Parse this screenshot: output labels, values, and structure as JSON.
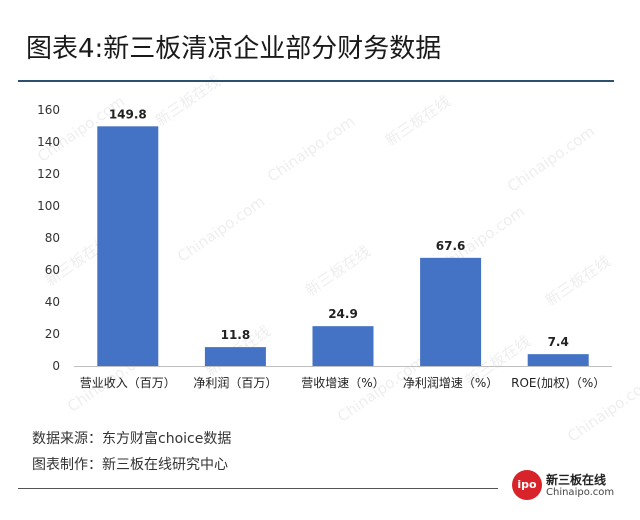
{
  "title": "图表4:新三板清凉企业部分财务数据",
  "source_note": "数据来源：东方财富choice数据",
  "author_note": "图表制作：新三板在线研究中心",
  "logo": {
    "circle_text": "ipo",
    "brand_cn": "新三板在线",
    "brand_en": "Chinaipo.com"
  },
  "watermark": [
    "Chinaipo.com",
    "新三板在线"
  ],
  "colors": {
    "bar": "#4472c4",
    "rule": "#2f4f6f"
  },
  "chart_data": {
    "type": "bar",
    "title": "",
    "xlabel": "",
    "ylabel": "",
    "ylim": [
      0,
      160
    ],
    "yticks": [
      0,
      20,
      40,
      60,
      80,
      100,
      120,
      140,
      160
    ],
    "grid": false,
    "legend": "none",
    "categories": [
      "营业收入（百万）",
      "净利润（百万）",
      "营收增速（%）",
      "净利润增速（%）",
      "ROE(加权)（%）"
    ],
    "values": [
      149.8,
      11.8,
      24.9,
      67.6,
      7.4
    ],
    "data_labels": [
      "149.8",
      "11.8",
      "24.9",
      "67.6",
      "7.4"
    ]
  }
}
